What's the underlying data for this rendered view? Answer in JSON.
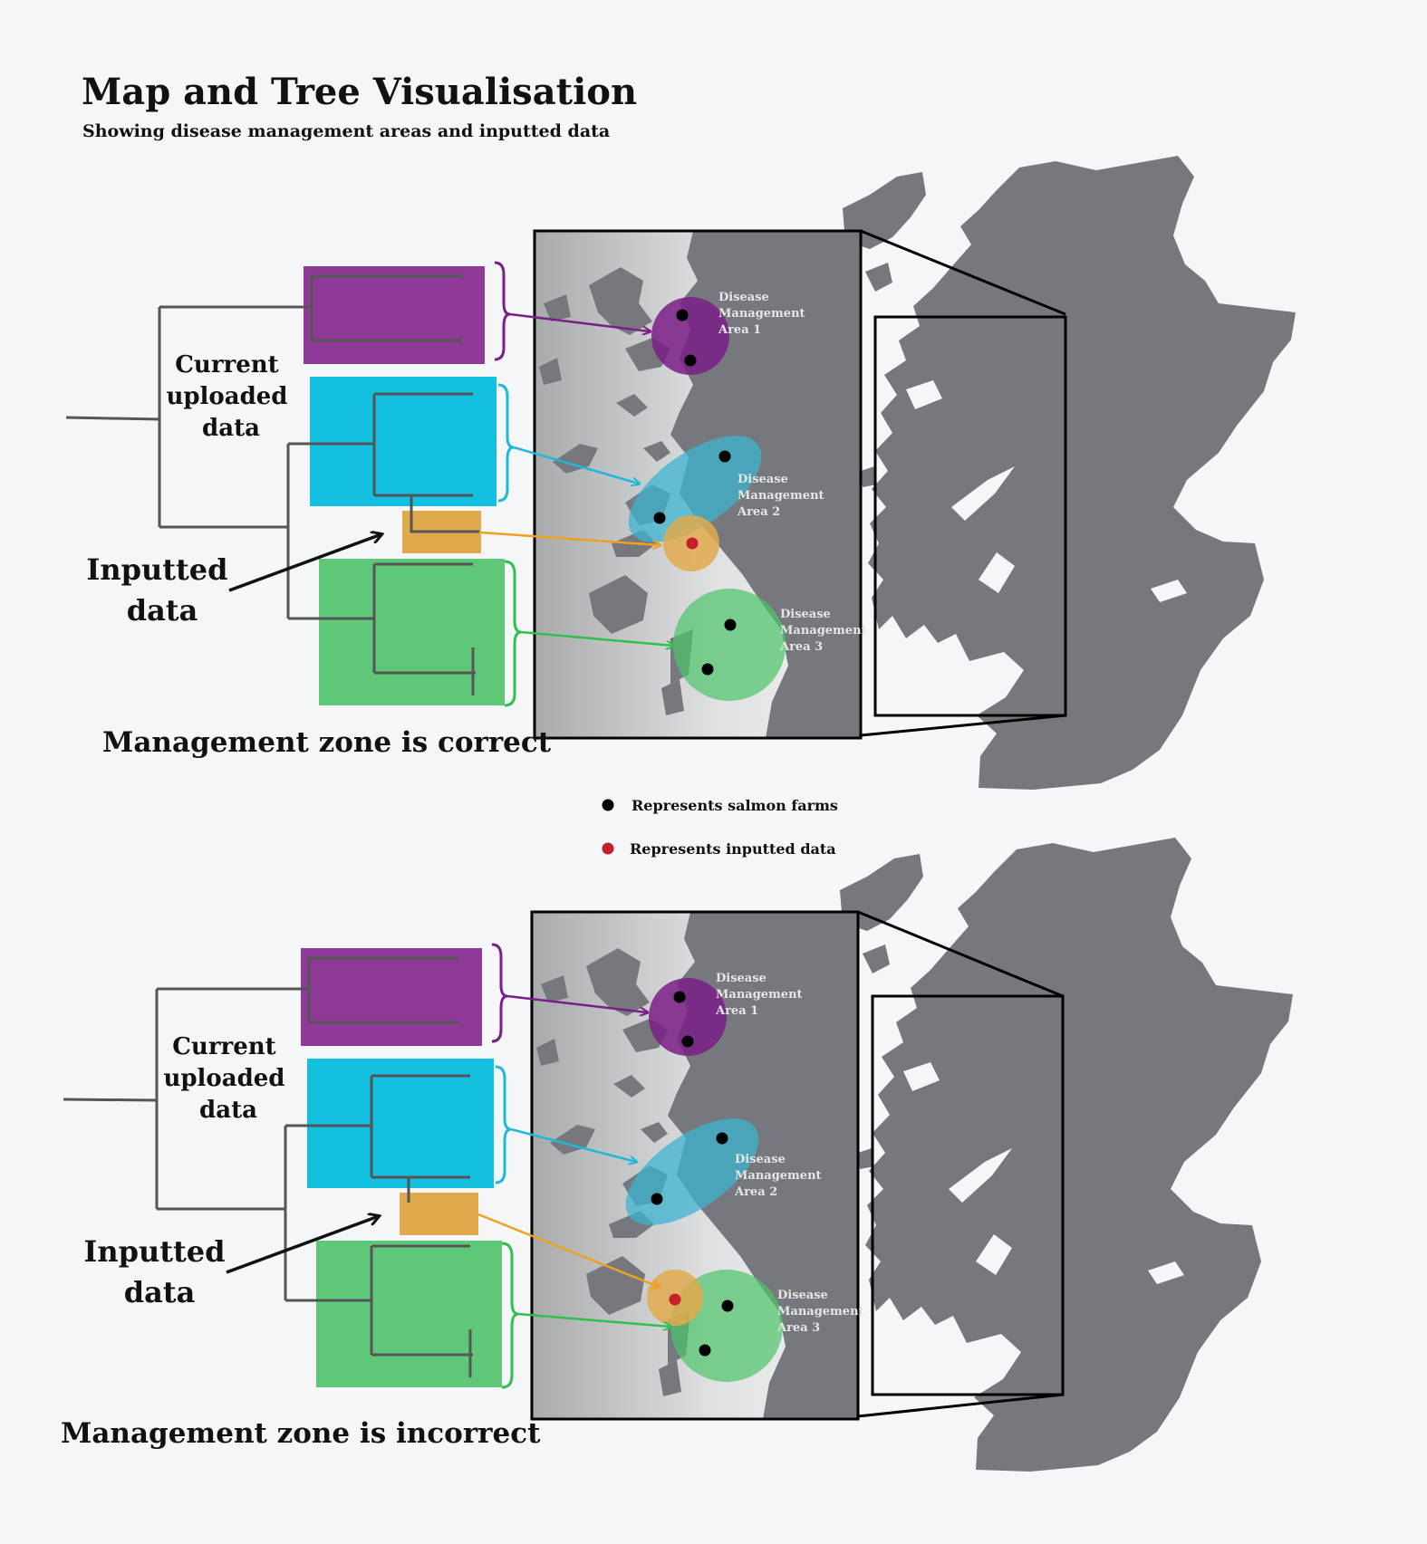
{
  "title": "Map and Tree Visualisation",
  "subtitle": "Showing disease management areas and inputted data",
  "panels": [
    {
      "current_label": [
        "Current",
        "uploaded",
        "data"
      ],
      "inputted_label": [
        "Inputted",
        "data"
      ],
      "zone_label": "Management zone is correct",
      "areas": [
        [
          "Disease",
          "Management",
          "Area 1"
        ],
        [
          "Disease",
          "Management",
          "Area 2"
        ],
        [
          "Disease",
          "Management",
          "Area 3"
        ]
      ]
    },
    {
      "current_label": [
        "Current",
        "uploaded",
        "data"
      ],
      "inputted_label": [
        "Inputted",
        "data"
      ],
      "zone_label": "Management zone is incorrect",
      "areas": [
        [
          "Disease",
          "Management",
          "Area 1"
        ],
        [
          "Disease",
          "Management",
          "Area 2"
        ],
        [
          "Disease",
          "Management",
          "Area 3"
        ]
      ]
    }
  ],
  "legend": {
    "farms": "Represents salmon farms",
    "inputted": "Represents inputted data"
  },
  "colors": {
    "area1": "#8e3a96",
    "area2": "#14c0e0",
    "inputted": "#e0aa4c",
    "area3": "#5ec878",
    "land": "#76787d",
    "farm_dot": "#000000",
    "inputted_dot": "#c8202a"
  }
}
